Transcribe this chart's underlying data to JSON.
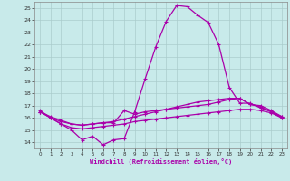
{
  "xlabel": "Windchill (Refroidissement éolien,°C)",
  "xlim": [
    -0.5,
    23.5
  ],
  "ylim": [
    13.5,
    25.5
  ],
  "yticks": [
    14,
    15,
    16,
    17,
    18,
    19,
    20,
    21,
    22,
    23,
    24,
    25
  ],
  "xticks": [
    0,
    1,
    2,
    3,
    4,
    5,
    6,
    7,
    8,
    9,
    10,
    11,
    12,
    13,
    14,
    15,
    16,
    17,
    18,
    19,
    20,
    21,
    22,
    23
  ],
  "bg_color": "#c8eaea",
  "line_color": "#aa00aa",
  "grid_color": "#aacccc",
  "lines": [
    {
      "x": [
        0,
        1,
        2,
        3,
        4,
        5,
        6,
        7,
        8,
        9,
        10,
        11,
        12,
        13,
        14,
        15,
        16,
        17,
        18,
        19,
        20,
        21,
        22,
        23
      ],
      "y": [
        16.6,
        16.0,
        15.5,
        15.0,
        14.2,
        14.5,
        13.8,
        14.2,
        14.3,
        16.5,
        19.2,
        21.8,
        23.9,
        25.2,
        25.1,
        24.4,
        23.8,
        22.0,
        18.5,
        17.2,
        17.2,
        16.8,
        16.5,
        16.0
      ]
    },
    {
      "x": [
        0,
        1,
        2,
        3,
        4,
        5,
        6,
        7,
        8,
        9,
        10,
        11,
        12,
        13,
        14,
        15,
        16,
        17,
        18,
        19,
        20,
        21,
        22,
        23
      ],
      "y": [
        16.5,
        16.0,
        15.5,
        15.2,
        15.1,
        15.2,
        15.3,
        15.4,
        15.5,
        15.7,
        15.8,
        15.9,
        16.0,
        16.1,
        16.2,
        16.3,
        16.4,
        16.5,
        16.6,
        16.7,
        16.7,
        16.6,
        16.4,
        16.0
      ]
    },
    {
      "x": [
        0,
        1,
        2,
        3,
        4,
        5,
        6,
        7,
        8,
        9,
        10,
        11,
        12,
        13,
        14,
        15,
        16,
        17,
        18,
        19,
        20,
        21,
        22,
        23
      ],
      "y": [
        16.5,
        16.0,
        15.7,
        15.5,
        15.4,
        15.5,
        15.6,
        15.6,
        16.6,
        16.3,
        16.5,
        16.6,
        16.7,
        16.8,
        16.9,
        17.0,
        17.1,
        17.3,
        17.5,
        17.6,
        17.1,
        17.0,
        16.6,
        16.1
      ]
    },
    {
      "x": [
        0,
        1,
        2,
        3,
        4,
        5,
        6,
        7,
        8,
        9,
        10,
        11,
        12,
        13,
        14,
        15,
        16,
        17,
        18,
        19,
        20,
        21,
        22,
        23
      ],
      "y": [
        16.5,
        16.1,
        15.8,
        15.5,
        15.4,
        15.5,
        15.6,
        15.7,
        15.9,
        16.1,
        16.3,
        16.5,
        16.7,
        16.9,
        17.1,
        17.3,
        17.4,
        17.5,
        17.6,
        17.6,
        17.1,
        16.9,
        16.5,
        16.1
      ]
    }
  ]
}
